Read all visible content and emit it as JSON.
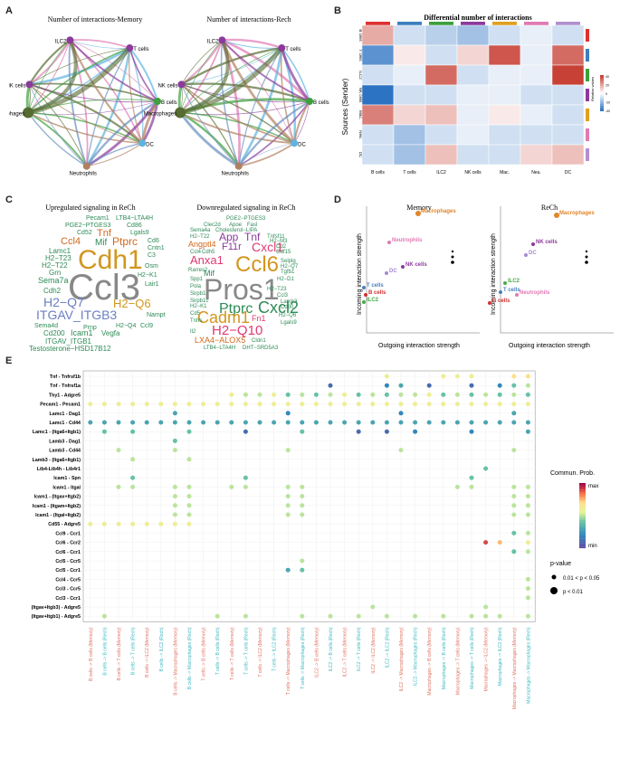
{
  "panels": {
    "a": "A",
    "b": "B",
    "c": "C",
    "d": "D",
    "e": "E"
  },
  "a": {
    "title_memory": "Number of interactions-Memory",
    "title_rech": "Number of interactions-Rech",
    "nodes": [
      "ILC2",
      "T cells",
      "NK cells",
      "B cells",
      "Macrophages",
      "DC",
      "Neutrophils"
    ]
  },
  "b": {
    "title": "Differential number of interactions",
    "ylabel": "Sources (Sender)",
    "rows": [
      "B cells",
      "T cells",
      "ILC2",
      "NK cells",
      "Mac.",
      "Neu.",
      "DC"
    ],
    "cols": [
      "B cells",
      "T cells",
      "ILC2",
      "NK cells",
      "Mac.",
      "Neu.",
      "DC"
    ],
    "legend_title": "Relative values",
    "legend_ticks": [
      "40",
      "20",
      "0",
      "-20",
      "-40"
    ],
    "matrix": [
      [
        20,
        -10,
        -15,
        -20,
        -10,
        -5,
        -10
      ],
      [
        -35,
        5,
        -10,
        10,
        40,
        -5,
        35
      ],
      [
        -10,
        -5,
        35,
        -10,
        -5,
        -5,
        45
      ],
      [
        -45,
        -10,
        -10,
        -5,
        -5,
        -10,
        -10
      ],
      [
        30,
        10,
        15,
        -5,
        5,
        -5,
        -10
      ],
      [
        -10,
        -20,
        -10,
        -5,
        -10,
        -10,
        -10
      ],
      [
        -10,
        -20,
        15,
        -10,
        -10,
        10,
        15
      ]
    ]
  },
  "c": {
    "title_up": "Upregulated signaling in ReCh",
    "title_down": "Downregulated signaling in ReCh"
  },
  "d": {
    "title_memory": "Memory",
    "title_rech": "ReCh",
    "xlabel": "Outgoing interaction strength",
    "ylabel": "Incoming interaction strength",
    "memory_points": [
      [
        "Macrophages",
        "#e0862a"
      ],
      [
        "Neutrophils",
        "#e07ab3"
      ],
      [
        "DC",
        "#a48bd1"
      ],
      [
        "NK cells",
        "#8b3a9c"
      ],
      [
        "T cells",
        "#4a7fbf"
      ],
      [
        "B cells",
        "#d03030"
      ],
      [
        "ILC2",
        "#4aa94a"
      ]
    ],
    "rech_points": [
      [
        "Macrophages",
        "#e0862a"
      ],
      [
        "NK cells",
        "#8b3a9c"
      ],
      [
        "DC",
        "#a48bd1"
      ],
      [
        "ILC2",
        "#4aa94a"
      ],
      [
        "T cells",
        "#4a7fbf"
      ],
      [
        "Neutrophils",
        "#e07ab3"
      ],
      [
        "B cells",
        "#d03030"
      ]
    ]
  },
  "e": {
    "legend_title": "Commun. Prob.",
    "legend_max": "max",
    "legend_min": "min",
    "pvalue_title": "p-value",
    "p1": "0.01 < p < 0.05",
    "p2": "p < 0.01",
    "rows": [
      "Tnf - Tnfrsf1b",
      "Tnf - Tnfrsf1a",
      "Thy1 - Adgre5",
      "Pecam1 - Pecam1",
      "Lamc1 - Dag1",
      "Lamc1 - Cd44",
      "Lamc1 - (Itga6+Itgb1)",
      "Lamb3 - Dag1",
      "Lamb3 - Cd44",
      "Lamb3 - (Itga6+Itgb1)",
      "Ltb4-Ltb4h - Ltb4r1",
      "Icam1 - Spn",
      "Icam1 - Itgal",
      "Icam1 - (Itgax+Itgb2)",
      "Icam1 - (Itgam+Itgb2)",
      "Icam1 - (Itgal+Itgb2)",
      "Cd55 - Adgre5",
      "Ccl9 - Ccr1",
      "Ccl6 - Ccr2",
      "Ccl6 - Ccr1",
      "Ccl5 - Ccr5",
      "Ccl5 - Ccr1",
      "Ccl4 - Ccr5",
      "Ccl3 - Ccr5",
      "Ccl3 - Ccr1",
      "(Itgav+Itgb3) - Adgre5",
      "(Itgav+Itgb1) - Adgre5"
    ],
    "cols": [
      "B cells -> B cells (Memory)",
      "B cells -> B cells (Rech)",
      "B cells -> T cells (Memory)",
      "B cells -> T cells (Rech)",
      "B cells -> ILC2 (Memory)",
      "B cells -> ILC2 (Rech)",
      "B cells -> Macrophages (Memory)",
      "B cells -> Macrophages (Rech)",
      "T cells -> B cells (Memory)",
      "T cells -> B cells (Rech)",
      "T cells -> T cells (Memory)",
      "T cells -> T cells (Rech)",
      "T cells -> ILC2 (Memory)",
      "T cells -> ILC2 (Rech)",
      "T cells -> Macrophages (Memory)",
      "T cells -> Macrophages (Rech)",
      "ILC2 -> B cells (Memory)",
      "ILC2 -> B cells (Rech)",
      "ILC2 -> T cells (Memory)",
      "ILC2 -> T cells (Rech)",
      "ILC2 -> ILC2 (Memory)",
      "ILC2 -> ILC2 (Rech)",
      "ILC2 -> Macrophages (Memory)",
      "ILC2 -> Macrophages (Rech)",
      "Macrophages -> B cells (Memory)",
      "Macrophages -> B cells (Rech)",
      "Macrophages -> T cells (Memory)",
      "Macrophages -> T cells (Rech)",
      "Macrophages -> ILC2 (Memory)",
      "Macrophages -> ILC2 (Rech)",
      "Macrophages -> Macrophages (Memory)",
      "Macrophages -> Macrophages (Rech)"
    ],
    "dots": [
      [
        0,
        21,
        0.6
      ],
      [
        0,
        25,
        0.6
      ],
      [
        0,
        26,
        0.6
      ],
      [
        0,
        27,
        0.6
      ],
      [
        0,
        30,
        0.7
      ],
      [
        0,
        31,
        0.7
      ],
      [
        1,
        17,
        0.1
      ],
      [
        1,
        21,
        0.2
      ],
      [
        1,
        22,
        0.3
      ],
      [
        1,
        24,
        0.1
      ],
      [
        1,
        27,
        0.1
      ],
      [
        1,
        29,
        0.2
      ],
      [
        1,
        30,
        0.4
      ],
      [
        1,
        31,
        0.5
      ],
      [
        2,
        10,
        0.6
      ],
      [
        2,
        11,
        0.5
      ],
      [
        2,
        12,
        0.5
      ],
      [
        2,
        13,
        0.6
      ],
      [
        2,
        14,
        0.4
      ],
      [
        2,
        15,
        0.5
      ],
      [
        2,
        16,
        0.4
      ],
      [
        2,
        17,
        0.5
      ],
      [
        2,
        18,
        0.6
      ],
      [
        2,
        19,
        0.4
      ],
      [
        2,
        20,
        0.5
      ],
      [
        2,
        21,
        0.4
      ],
      [
        2,
        22,
        0.5
      ],
      [
        2,
        23,
        0.5
      ],
      [
        2,
        24,
        0.6
      ],
      [
        2,
        25,
        0.4
      ],
      [
        2,
        26,
        0.5
      ],
      [
        2,
        27,
        0.4
      ],
      [
        2,
        28,
        0.5
      ],
      [
        2,
        29,
        0.4
      ],
      [
        2,
        30,
        0.5
      ],
      [
        2,
        31,
        0.4
      ],
      [
        3,
        0,
        0.6
      ],
      [
        3,
        1,
        0.6
      ],
      [
        3,
        2,
        0.6
      ],
      [
        3,
        3,
        0.6
      ],
      [
        3,
        4,
        0.6
      ],
      [
        3,
        5,
        0.6
      ],
      [
        3,
        6,
        0.6
      ],
      [
        3,
        7,
        0.6
      ],
      [
        3,
        8,
        0.6
      ],
      [
        3,
        9,
        0.6
      ],
      [
        3,
        10,
        0.6
      ],
      [
        3,
        11,
        0.6
      ],
      [
        3,
        12,
        0.6
      ],
      [
        3,
        13,
        0.6
      ],
      [
        3,
        14,
        0.6
      ],
      [
        3,
        15,
        0.6
      ],
      [
        3,
        16,
        0.6
      ],
      [
        3,
        17,
        0.6
      ],
      [
        3,
        18,
        0.6
      ],
      [
        3,
        19,
        0.6
      ],
      [
        3,
        20,
        0.6
      ],
      [
        3,
        21,
        0.6
      ],
      [
        3,
        22,
        0.6
      ],
      [
        3,
        23,
        0.6
      ],
      [
        3,
        24,
        0.6
      ],
      [
        3,
        25,
        0.6
      ],
      [
        3,
        26,
        0.6
      ],
      [
        3,
        27,
        0.6
      ],
      [
        3,
        28,
        0.6
      ],
      [
        3,
        29,
        0.6
      ],
      [
        3,
        30,
        0.6
      ],
      [
        3,
        31,
        0.6
      ],
      [
        4,
        6,
        0.3
      ],
      [
        4,
        14,
        0.2
      ],
      [
        4,
        22,
        0.2
      ],
      [
        4,
        30,
        0.3
      ],
      [
        5,
        0,
        0.3
      ],
      [
        5,
        1,
        0.3
      ],
      [
        5,
        2,
        0.3
      ],
      [
        5,
        3,
        0.3
      ],
      [
        5,
        4,
        0.3
      ],
      [
        5,
        5,
        0.3
      ],
      [
        5,
        6,
        0.3
      ],
      [
        5,
        7,
        0.3
      ],
      [
        5,
        8,
        0.3
      ],
      [
        5,
        9,
        0.3
      ],
      [
        5,
        10,
        0.3
      ],
      [
        5,
        11,
        0.3
      ],
      [
        5,
        12,
        0.3
      ],
      [
        5,
        13,
        0.3
      ],
      [
        5,
        14,
        0.3
      ],
      [
        5,
        15,
        0.3
      ],
      [
        5,
        16,
        0.3
      ],
      [
        5,
        17,
        0.3
      ],
      [
        5,
        18,
        0.3
      ],
      [
        5,
        19,
        0.3
      ],
      [
        5,
        20,
        0.3
      ],
      [
        5,
        21,
        0.3
      ],
      [
        5,
        22,
        0.3
      ],
      [
        5,
        23,
        0.3
      ],
      [
        5,
        24,
        0.3
      ],
      [
        5,
        25,
        0.3
      ],
      [
        5,
        26,
        0.3
      ],
      [
        5,
        27,
        0.3
      ],
      [
        5,
        28,
        0.3
      ],
      [
        5,
        29,
        0.3
      ],
      [
        5,
        30,
        0.3
      ],
      [
        5,
        31,
        0.3
      ],
      [
        6,
        1,
        0.4
      ],
      [
        6,
        3,
        0.4
      ],
      [
        6,
        7,
        0.4
      ],
      [
        6,
        11,
        0.1
      ],
      [
        6,
        15,
        0.4
      ],
      [
        6,
        19,
        0.1
      ],
      [
        6,
        21,
        0.1
      ],
      [
        6,
        23,
        0.2
      ],
      [
        6,
        27,
        0.2
      ],
      [
        6,
        31,
        0.3
      ],
      [
        7,
        6,
        0.4
      ],
      [
        8,
        2,
        0.5
      ],
      [
        8,
        6,
        0.5
      ],
      [
        8,
        14,
        0.5
      ],
      [
        8,
        22,
        0.5
      ],
      [
        8,
        30,
        0.5
      ],
      [
        9,
        3,
        0.5
      ],
      [
        9,
        7,
        0.5
      ],
      [
        10,
        28,
        0.4
      ],
      [
        11,
        3,
        0.4
      ],
      [
        11,
        11,
        0.4
      ],
      [
        11,
        27,
        0.4
      ],
      [
        12,
        2,
        0.5
      ],
      [
        12,
        3,
        0.5
      ],
      [
        12,
        6,
        0.5
      ],
      [
        12,
        7,
        0.5
      ],
      [
        12,
        10,
        0.5
      ],
      [
        12,
        11,
        0.5
      ],
      [
        12,
        14,
        0.5
      ],
      [
        12,
        15,
        0.5
      ],
      [
        12,
        26,
        0.5
      ],
      [
        12,
        27,
        0.5
      ],
      [
        12,
        30,
        0.5
      ],
      [
        12,
        31,
        0.5
      ],
      [
        13,
        6,
        0.5
      ],
      [
        13,
        7,
        0.5
      ],
      [
        13,
        14,
        0.5
      ],
      [
        13,
        15,
        0.5
      ],
      [
        13,
        30,
        0.5
      ],
      [
        13,
        31,
        0.5
      ],
      [
        14,
        6,
        0.5
      ],
      [
        14,
        7,
        0.5
      ],
      [
        14,
        14,
        0.5
      ],
      [
        14,
        15,
        0.5
      ],
      [
        14,
        30,
        0.5
      ],
      [
        14,
        31,
        0.5
      ],
      [
        15,
        6,
        0.5
      ],
      [
        15,
        7,
        0.5
      ],
      [
        15,
        14,
        0.5
      ],
      [
        15,
        15,
        0.5
      ],
      [
        15,
        30,
        0.5
      ],
      [
        15,
        31,
        0.5
      ],
      [
        16,
        0,
        0.6
      ],
      [
        16,
        1,
        0.6
      ],
      [
        16,
        2,
        0.6
      ],
      [
        16,
        3,
        0.6
      ],
      [
        16,
        4,
        0.6
      ],
      [
        16,
        5,
        0.6
      ],
      [
        16,
        6,
        0.6
      ],
      [
        16,
        7,
        0.6
      ],
      [
        17,
        30,
        0.4
      ],
      [
        17,
        31,
        0.5
      ],
      [
        18,
        28,
        0.9
      ],
      [
        18,
        29,
        0.75
      ],
      [
        18,
        31,
        0.6
      ],
      [
        19,
        30,
        0.4
      ],
      [
        19,
        31,
        0.5
      ],
      [
        20,
        15,
        0.5
      ],
      [
        21,
        14,
        0.3
      ],
      [
        21,
        15,
        0.4
      ],
      [
        22,
        31,
        0.5
      ],
      [
        23,
        31,
        0.5
      ],
      [
        24,
        31,
        0.5
      ],
      [
        25,
        20,
        0.5
      ],
      [
        25,
        28,
        0.5
      ],
      [
        26,
        1,
        0.5
      ],
      [
        26,
        9,
        0.5
      ],
      [
        26,
        11,
        0.5
      ],
      [
        26,
        15,
        0.5
      ],
      [
        26,
        17,
        0.5
      ],
      [
        26,
        19,
        0.5
      ],
      [
        26,
        21,
        0.5
      ],
      [
        26,
        23,
        0.5
      ],
      [
        26,
        25,
        0.5
      ],
      [
        26,
        27,
        0.5
      ],
      [
        26,
        28,
        0.5
      ],
      [
        26,
        29,
        0.5
      ],
      [
        26,
        31,
        0.5
      ]
    ]
  }
}
